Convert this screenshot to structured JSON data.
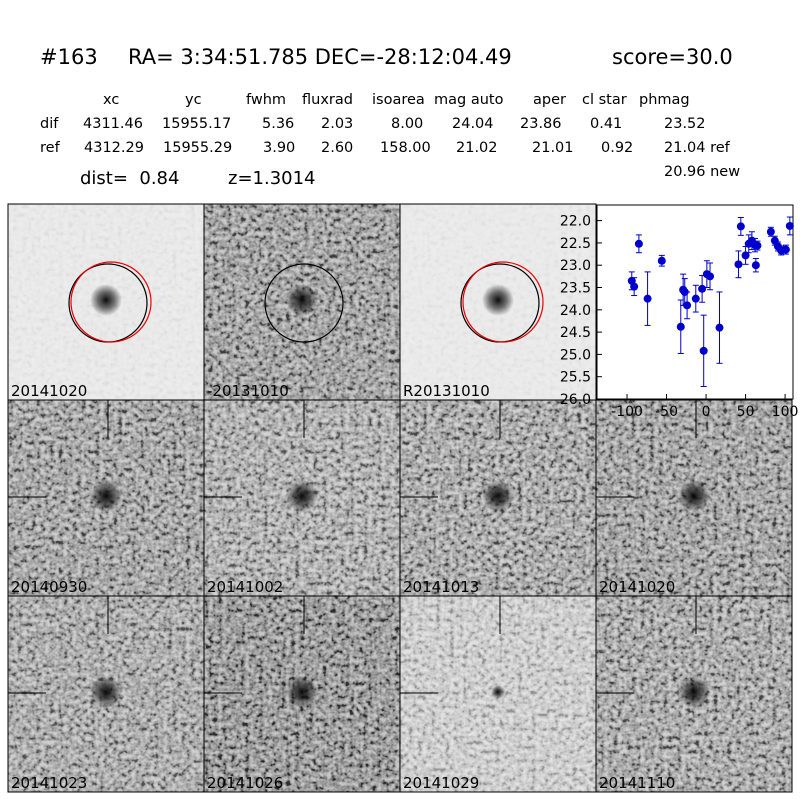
{
  "header": {
    "object": "#163",
    "coords": "RA= 3:34:51.785 DEC=-28:12:04.49",
    "score": "score=30.0"
  },
  "table": {
    "columns": [
      "xc",
      "yc",
      "fwhm",
      "fluxrad",
      "isoarea",
      "mag auto",
      "aper",
      "cl star",
      "phmag"
    ],
    "rows": [
      {
        "label": "dif",
        "cells": [
          "4311.46",
          "15955.17",
          "5.36",
          "2.03",
          "8.00",
          "24.04",
          "23.86",
          "0.41",
          "23.52"
        ]
      },
      {
        "label": "ref",
        "cells": [
          "4312.29",
          "15955.29",
          "3.90",
          "2.60",
          "158.00",
          "21.02",
          "21.01",
          "0.92",
          "21.04 ref"
        ]
      }
    ],
    "extra": "20.96 new"
  },
  "info": {
    "dist": "dist=  0.84",
    "z": "z=1.3014"
  },
  "panels": [
    {
      "label": "20141020"
    },
    {
      "label": "-20131010"
    },
    {
      "label": "R20131010"
    },
    {
      "label": "20140930"
    },
    {
      "label": "20141002"
    },
    {
      "label": "20141013"
    },
    {
      "label": "20141020",
      "color": "#ff0000"
    },
    {
      "label": "20141023"
    },
    {
      "label": "20141026"
    },
    {
      "label": "20141029"
    },
    {
      "label": "20141110"
    }
  ],
  "chart_data": {
    "type": "scatter",
    "x": [
      -94,
      -91,
      -85,
      -74,
      -56,
      -32,
      -29,
      -27,
      -24,
      -13,
      -5,
      -3,
      1,
      5,
      17,
      41,
      44,
      50,
      54,
      58,
      62,
      63,
      65,
      82,
      87,
      91,
      95,
      101,
      106
    ],
    "series": [
      {
        "color": "#0000cc",
        "values": [
          23.35,
          23.48,
          22.52,
          23.75,
          22.9,
          24.38,
          23.55,
          23.6,
          23.9,
          23.75,
          23.53,
          24.92,
          23.2,
          23.25,
          24.4,
          22.98,
          22.13,
          22.78,
          22.52,
          22.45,
          22.55,
          23.0,
          22.56,
          22.25,
          22.45,
          22.58,
          22.67,
          22.65,
          22.12
        ],
        "errors": [
          0.2,
          0.2,
          0.2,
          0.6,
          0.12,
          0.6,
          0.35,
          0.3,
          0.3,
          0.3,
          0.3,
          0.8,
          0.3,
          0.3,
          0.8,
          0.3,
          0.2,
          0.2,
          0.2,
          0.2,
          0.15,
          0.15,
          0.1,
          0.1,
          0.1,
          0.1,
          0.1,
          0.1,
          0.2
        ]
      }
    ],
    "xlim": [
      -138,
      110
    ],
    "xticks": [
      -100,
      -50,
      0,
      50,
      100
    ],
    "ylim": [
      26.0,
      21.65
    ],
    "yticks": [
      {
        "value": 22.0,
        "label": "22.0"
      },
      {
        "value": 22.5,
        "label": "22.5"
      },
      {
        "value": 23.0,
        "label": "23.0"
      },
      {
        "value": 23.5,
        "label": "23.5"
      },
      {
        "value": 24.0,
        "label": "24.0"
      },
      {
        "value": 24.5,
        "label": "24.5"
      },
      {
        "value": 25.0,
        "label": "25.0"
      },
      {
        "value": 25.5,
        "label": "25.5"
      },
      {
        "value": 26.0,
        "label": "26.0"
      }
    ]
  }
}
